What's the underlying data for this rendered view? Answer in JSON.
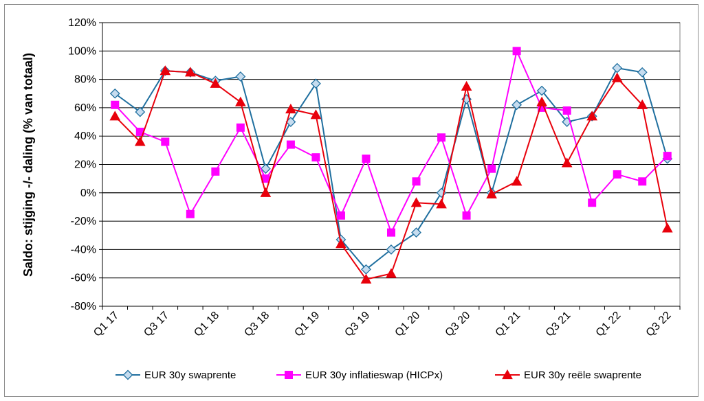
{
  "chart_data": {
    "type": "line",
    "title": "",
    "xlabel": "",
    "ylabel": "Saldo: stijging -/- daling (% van totaal)",
    "ylim": [
      -80,
      120
    ],
    "ytick_step": 20,
    "grid": true,
    "legend_position": "bottom",
    "x": [
      "Q1 17",
      "Q2 17",
      "Q3 17",
      "Q4 17",
      "Q1 18",
      "Q2 18",
      "Q3 18",
      "Q4 18",
      "Q1 19",
      "Q2 19",
      "Q3 19",
      "Q4 19",
      "Q1 20",
      "Q2 20",
      "Q3 20",
      "Q4 20",
      "Q1 21",
      "Q2 21",
      "Q3 21",
      "Q4 21",
      "Q1 22",
      "Q2 22",
      "Q3 22"
    ],
    "x_tick_labels": [
      "Q1 17",
      "Q3 17",
      "Q1 18",
      "Q3 18",
      "Q1 19",
      "Q3 19",
      "Q1 20",
      "Q3 20",
      "Q1 21",
      "Q3 21",
      "Q1 22",
      "Q3 22"
    ],
    "series": [
      {
        "name": "EUR 30y swaprente",
        "color": "#1f6f9f",
        "marker": "diamond",
        "marker_fill": "#c6dcef",
        "values": [
          70,
          57,
          86,
          85,
          79,
          82,
          17,
          50,
          77,
          -33,
          -54,
          -40,
          -28,
          0,
          66,
          0,
          62,
          72,
          50,
          54,
          88,
          85,
          24
        ]
      },
      {
        "name": "EUR 30y inflatieswap (HICPx)",
        "color": "#ff00ff",
        "marker": "square",
        "marker_fill": "#ff00ff",
        "values": [
          62,
          43,
          36,
          -15,
          15,
          46,
          10,
          34,
          25,
          -16,
          24,
          -28,
          8,
          39,
          -16,
          17,
          100,
          60,
          58,
          -7,
          13,
          8,
          26
        ]
      },
      {
        "name": "EUR 30y reële swaprente",
        "color": "#e8000b",
        "marker": "triangle",
        "marker_fill": "#e8000b",
        "values": [
          54,
          36,
          86,
          85,
          77,
          64,
          0,
          59,
          55,
          -36,
          -61,
          -57,
          -7,
          -8,
          75,
          -1,
          8,
          64,
          21,
          54,
          81,
          62,
          -25
        ]
      }
    ]
  }
}
